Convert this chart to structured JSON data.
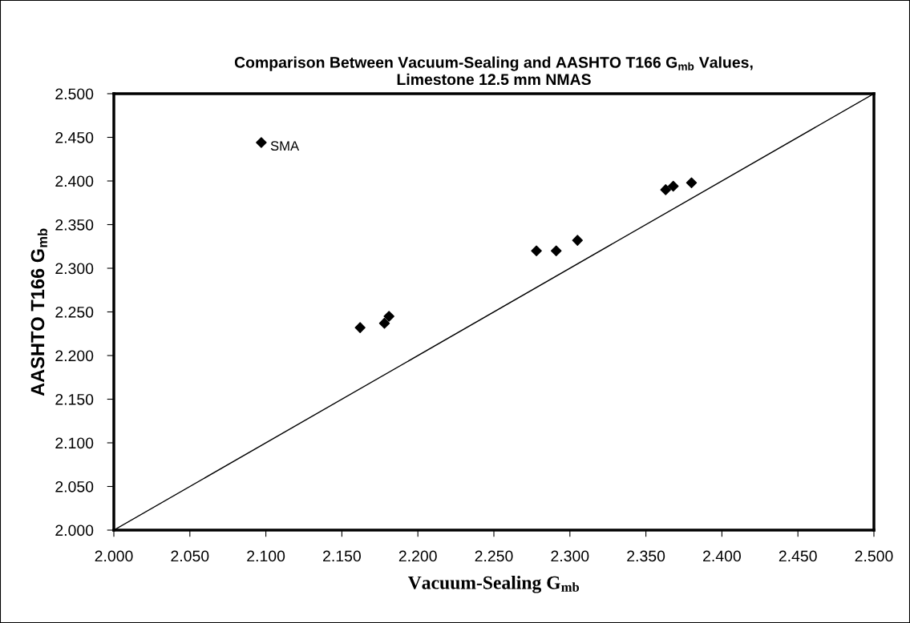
{
  "chart_data": {
    "type": "scatter",
    "title": "Comparison Between Vacuum-Sealing and AASHTO T166 G$_{mb}$ Values,\nLimestone 12.5 mm NMAS",
    "xlabel": "Vacuum-Sealing G$_{mb}$",
    "ylabel": "AASHTO T166 G$_{mb}$",
    "series": [
      {
        "color": "#000000",
        "marker": "diamond",
        "x": [
          2.097,
          2.162,
          2.178,
          2.181,
          2.278,
          2.291,
          2.305,
          2.363,
          2.368,
          2.38
        ],
        "values": [
          2.444,
          2.232,
          2.237,
          2.245,
          2.32,
          2.32,
          2.332,
          2.39,
          2.394,
          2.398
        ]
      },
      {
        "type": "line",
        "color": "#000000",
        "marker": "none",
        "line_style": "solid",
        "x": [
          2.0,
          2.5
        ],
        "values": [
          2.0,
          2.5
        ]
      }
    ],
    "annotations": [
      {
        "text": "SMA",
        "x": 2.097,
        "y": 2.444
      }
    ],
    "xlim": [
      2.0,
      2.5
    ],
    "ylim": [
      2.0,
      2.5
    ],
    "xticks": [
      {
        "value": 2.0,
        "label": "2.000"
      },
      {
        "value": 2.05,
        "label": "2.050"
      },
      {
        "value": 2.1,
        "label": "2.100"
      },
      {
        "value": 2.15,
        "label": "2.150"
      },
      {
        "value": 2.2,
        "label": "2.200"
      },
      {
        "value": 2.25,
        "label": "2.250"
      },
      {
        "value": 2.3,
        "label": "2.300"
      },
      {
        "value": 2.35,
        "label": "2.350"
      },
      {
        "value": 2.4,
        "label": "2.400"
      },
      {
        "value": 2.45,
        "label": "2.450"
      },
      {
        "value": 2.5,
        "label": "2.500"
      }
    ],
    "yticks": [
      {
        "value": 2.0,
        "label": "2.000"
      },
      {
        "value": 2.05,
        "label": "2.050"
      },
      {
        "value": 2.1,
        "label": "2.100"
      },
      {
        "value": 2.15,
        "label": "2.150"
      },
      {
        "value": 2.2,
        "label": "2.200"
      },
      {
        "value": 2.25,
        "label": "2.250"
      },
      {
        "value": 2.3,
        "label": "2.300"
      },
      {
        "value": 2.35,
        "label": "2.350"
      },
      {
        "value": 2.4,
        "label": "2.400"
      },
      {
        "value": 2.45,
        "label": "2.450"
      },
      {
        "value": 2.5,
        "label": "2.500"
      }
    ],
    "grid": false,
    "legend": false
  }
}
